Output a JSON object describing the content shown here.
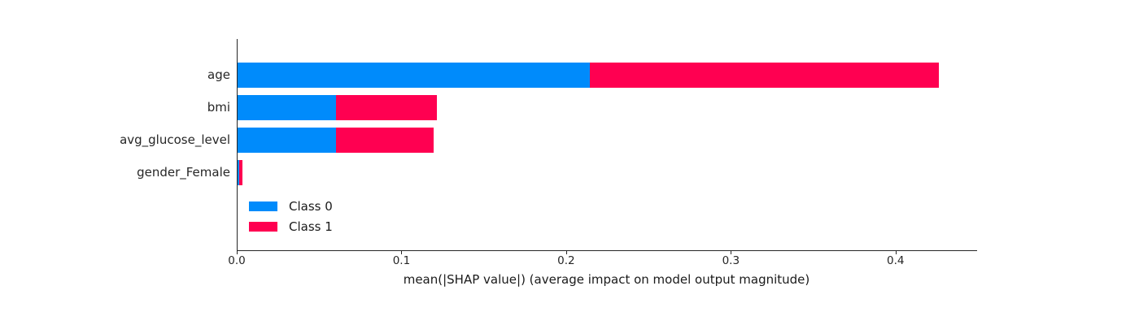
{
  "figure": {
    "background": "#ffffff"
  },
  "chart_data": {
    "type": "bar",
    "orientation": "horizontal",
    "stacked": true,
    "title": "",
    "categories": [
      "age",
      "bmi",
      "avg_glucose_level",
      "gender_Female"
    ],
    "series": [
      {
        "name": "Class 0",
        "color": "#008bfb",
        "values": [
          0.214,
          0.06,
          0.06,
          0.001
        ]
      },
      {
        "name": "Class 1",
        "color": "#ff0051",
        "values": [
          0.212,
          0.061,
          0.059,
          0.002
        ]
      }
    ],
    "totals": [
      0.426,
      0.121,
      0.119,
      0.003
    ],
    "xlabel": "mean(|SHAP value|) (average impact on model output magnitude)",
    "ylabel": "",
    "xticks": [
      0.0,
      0.1,
      0.2,
      0.3,
      0.4
    ],
    "xtick_labels": [
      "0.0",
      "0.1",
      "0.2",
      "0.3",
      "0.4"
    ],
    "xlim": [
      0,
      0.449
    ],
    "grid": false,
    "legend": {
      "position": "lower-left-inside",
      "entries": [
        "Class 0",
        "Class 1"
      ]
    }
  },
  "colors": {
    "class0": "#008bfb",
    "class1": "#ff0051",
    "axis": "#262626",
    "text": "#262626"
  }
}
